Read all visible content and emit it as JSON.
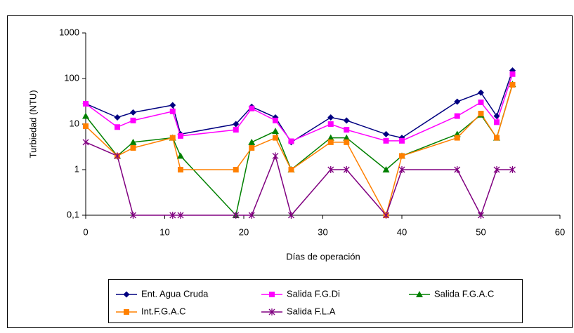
{
  "chart_data": {
    "type": "line",
    "ylabel": "Turbiedad (NTU)",
    "xlabel": "Días de operación",
    "log_y": true,
    "x": [
      0,
      4,
      6,
      11,
      12,
      19,
      21,
      24,
      26,
      31,
      33,
      38,
      40,
      47,
      50,
      52,
      54
    ],
    "xlim": [
      0,
      60
    ],
    "xticks": [
      0,
      10,
      20,
      30,
      40,
      50,
      60
    ],
    "ylim": [
      0.1,
      1000
    ],
    "yticks": [
      {
        "value": 0.1,
        "label": "0,1"
      },
      1,
      10,
      100,
      1000
    ],
    "legend": "bottom",
    "series": [
      {
        "name": "Ent. Agua Cruda",
        "color": "#000080",
        "marker": "diamond",
        "values": [
          28,
          14,
          18,
          26,
          6,
          10,
          24,
          14,
          4,
          14,
          12,
          6,
          5,
          31,
          49,
          15,
          150
        ]
      },
      {
        "name": "Salida F.G.Di",
        "color": "#ff00ff",
        "marker": "square",
        "values": [
          28,
          8.6,
          12,
          19,
          5.5,
          7.5,
          22,
          12,
          4.2,
          10,
          7.5,
          4.3,
          4.3,
          15,
          30,
          11,
          125
        ]
      },
      {
        "name": "Salida F.G.A.C",
        "color": "#008000",
        "marker": "triangle",
        "values": [
          15,
          2,
          4,
          5,
          2,
          0.1,
          4,
          7,
          1,
          5,
          5,
          1,
          2,
          6,
          16,
          5,
          75
        ]
      },
      {
        "name": "Int.F.G.A.C",
        "color": "#ff8000",
        "marker": "square",
        "values": [
          9,
          2,
          3,
          5,
          1,
          1,
          3,
          5,
          1,
          4,
          4,
          0.1,
          2,
          5,
          17,
          5,
          73
        ]
      },
      {
        "name": "Salida F.L.A",
        "color": "#800080",
        "marker": "star",
        "values": [
          4,
          2,
          0.1,
          0.1,
          0.1,
          0.1,
          0.1,
          2,
          0.1,
          1,
          1,
          0.1,
          1,
          1,
          0.1,
          1,
          1
        ]
      }
    ]
  }
}
